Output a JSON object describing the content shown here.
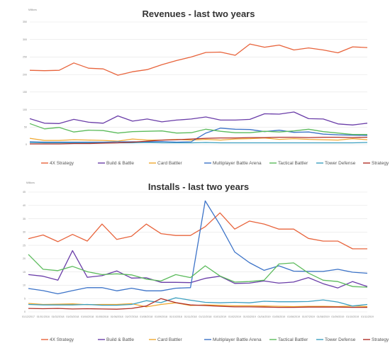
{
  "chart_data": [
    {
      "type": "line",
      "title": "Revenues - last two years",
      "ylabel": "Millions",
      "ylim": [
        0,
        350
      ],
      "yticks": [
        "0",
        "50",
        "100",
        "150",
        "200",
        "250",
        "300",
        "350"
      ],
      "grid": true,
      "legend": "bottom",
      "x_count": 24,
      "xtick_labels": [],
      "series": [
        {
          "name": "4X Strategy",
          "color": "#E8643C",
          "values": [
            212,
            211,
            212,
            233,
            218,
            216,
            198,
            208,
            214,
            228,
            240,
            250,
            263,
            264,
            255,
            287,
            278,
            284,
            270,
            276,
            270,
            262,
            279,
            277
          ]
        },
        {
          "name": "Build & Battle",
          "color": "#6A3DA8",
          "values": [
            74,
            61,
            60,
            72,
            64,
            61,
            82,
            67,
            73,
            65,
            70,
            73,
            79,
            70,
            70,
            72,
            88,
            87,
            93,
            74,
            73,
            59,
            56,
            61
          ]
        },
        {
          "name": "Card Battler",
          "color": "#F0A830",
          "values": [
            18,
            12,
            12,
            14,
            13,
            12,
            10,
            16,
            13,
            13,
            15,
            13,
            15,
            13,
            16,
            17,
            19,
            15,
            17,
            15,
            14,
            13,
            17,
            14
          ]
        },
        {
          "name": "Multiplayer Battle Arena",
          "color": "#3C73C8",
          "values": [
            8,
            7,
            7,
            7,
            7,
            7,
            8,
            8,
            8,
            9,
            7,
            8,
            33,
            47,
            44,
            43,
            37,
            41,
            35,
            36,
            30,
            28,
            27,
            26
          ]
        },
        {
          "name": "Tactical Battler",
          "color": "#5CBB5C",
          "values": [
            60,
            45,
            49,
            36,
            41,
            40,
            33,
            37,
            38,
            39,
            33,
            34,
            44,
            38,
            34,
            34,
            38,
            36,
            39,
            44,
            37,
            33,
            29,
            29
          ]
        },
        {
          "name": "Tower Defense",
          "color": "#3CA0C0",
          "values": [
            6,
            5,
            5,
            5,
            5,
            5,
            5,
            5,
            6,
            5,
            5,
            5,
            6,
            5,
            5,
            5,
            5,
            5,
            5,
            5,
            5,
            5,
            5,
            6
          ]
        },
        {
          "name": "Strategy RPG",
          "color": "#B03028",
          "values": [
            2,
            2,
            2,
            3,
            3,
            4,
            5,
            7,
            10,
            13,
            14,
            16,
            18,
            19,
            19,
            20,
            20,
            21,
            21,
            20,
            21,
            21,
            20,
            21
          ]
        }
      ]
    },
    {
      "type": "line",
      "title": "Installs - last two years",
      "ylabel": "Millions",
      "ylim": [
        0,
        45
      ],
      "yticks": [
        "0",
        "5",
        "10",
        "15",
        "20",
        "25",
        "30",
        "35",
        "40",
        "45"
      ],
      "grid": true,
      "legend": "bottom",
      "x_count": 24,
      "xtick_labels": [
        "01/12/2017",
        "01/01/2018",
        "01/02/2018",
        "01/03/2018",
        "01/04/2018",
        "01/05/2018",
        "01/06/2018",
        "01/07/2018",
        "01/08/2018",
        "01/09/2018",
        "01/10/2018",
        "01/11/2018",
        "01/12/2018",
        "01/01/2019",
        "01/02/2019",
        "01/03/2019",
        "01/04/2019",
        "01/05/2019",
        "01/06/2019",
        "01/07/2019",
        "01/08/2019",
        "01/09/2019",
        "01/10/2019",
        "01/11/2019"
      ],
      "series": [
        {
          "name": "4X Strategy",
          "color": "#E8643C",
          "values": [
            27.5,
            28.9,
            26.4,
            29.1,
            26.6,
            33.0,
            27.2,
            28.4,
            33.0,
            29.4,
            28.7,
            28.7,
            32.0,
            37.2,
            31.1,
            34.1,
            33.0,
            31.1,
            31.1,
            27.6,
            26.6,
            26.6,
            23.7,
            23.7
          ]
        },
        {
          "name": "Build & Battle",
          "color": "#6A3DA8",
          "values": [
            14.0,
            13.4,
            11.9,
            23.0,
            13.0,
            13.6,
            15.4,
            12.7,
            12.8,
            11.1,
            11.1,
            11.0,
            12.6,
            13.4,
            10.7,
            10.8,
            11.6,
            10.8,
            11.2,
            12.9,
            10.6,
            9.0,
            11.4,
            9.5
          ]
        },
        {
          "name": "Card Battler",
          "color": "#F0A830",
          "values": [
            3.2,
            2.8,
            2.9,
            3.0,
            2.7,
            2.8,
            2.8,
            3.1,
            1.9,
            2.8,
            3.4,
            2.4,
            2.6,
            2.5,
            2.3,
            2.3,
            2.2,
            2.1,
            2.0,
            2.1,
            2.1,
            2.0,
            2.2,
            2.0
          ]
        },
        {
          "name": "Multiplayer Battle Arena",
          "color": "#3C73C8",
          "values": [
            8.8,
            8.0,
            6.8,
            8.0,
            9.1,
            9.1,
            7.9,
            8.9,
            7.9,
            7.9,
            8.9,
            9.1,
            41.7,
            32.7,
            22.5,
            18.5,
            15.6,
            17.3,
            15.3,
            15.2,
            15.2,
            16.0,
            14.9,
            14.5
          ]
        },
        {
          "name": "Tactical Battler",
          "color": "#5CBB5C",
          "values": [
            21.6,
            16.0,
            15.5,
            17.1,
            15.1,
            14.0,
            14.3,
            13.9,
            12.3,
            11.6,
            14.0,
            12.9,
            17.3,
            13.5,
            11.2,
            11.4,
            11.9,
            18.0,
            18.4,
            14.6,
            11.9,
            11.4,
            9.5,
            9.3
          ]
        },
        {
          "name": "Tower Defense",
          "color": "#3CA0C0",
          "values": [
            2.8,
            2.6,
            2.6,
            2.6,
            2.8,
            2.5,
            2.5,
            2.8,
            4.2,
            3.5,
            5.3,
            4.4,
            3.6,
            3.4,
            3.6,
            3.4,
            4.0,
            3.8,
            3.8,
            3.9,
            4.5,
            3.7,
            2.2,
            2.8
          ]
        },
        {
          "name": "Strategy RPG",
          "color": "#B03028",
          "values": [
            1.3,
            1.2,
            1.3,
            1.1,
            1.2,
            1.1,
            1.0,
            1.3,
            2.2,
            5.0,
            3.5,
            2.6,
            2.4,
            2.1,
            1.9,
            1.9,
            1.8,
            1.7,
            1.7,
            1.8,
            1.8,
            1.8,
            1.7,
            1.7
          ]
        }
      ]
    }
  ]
}
